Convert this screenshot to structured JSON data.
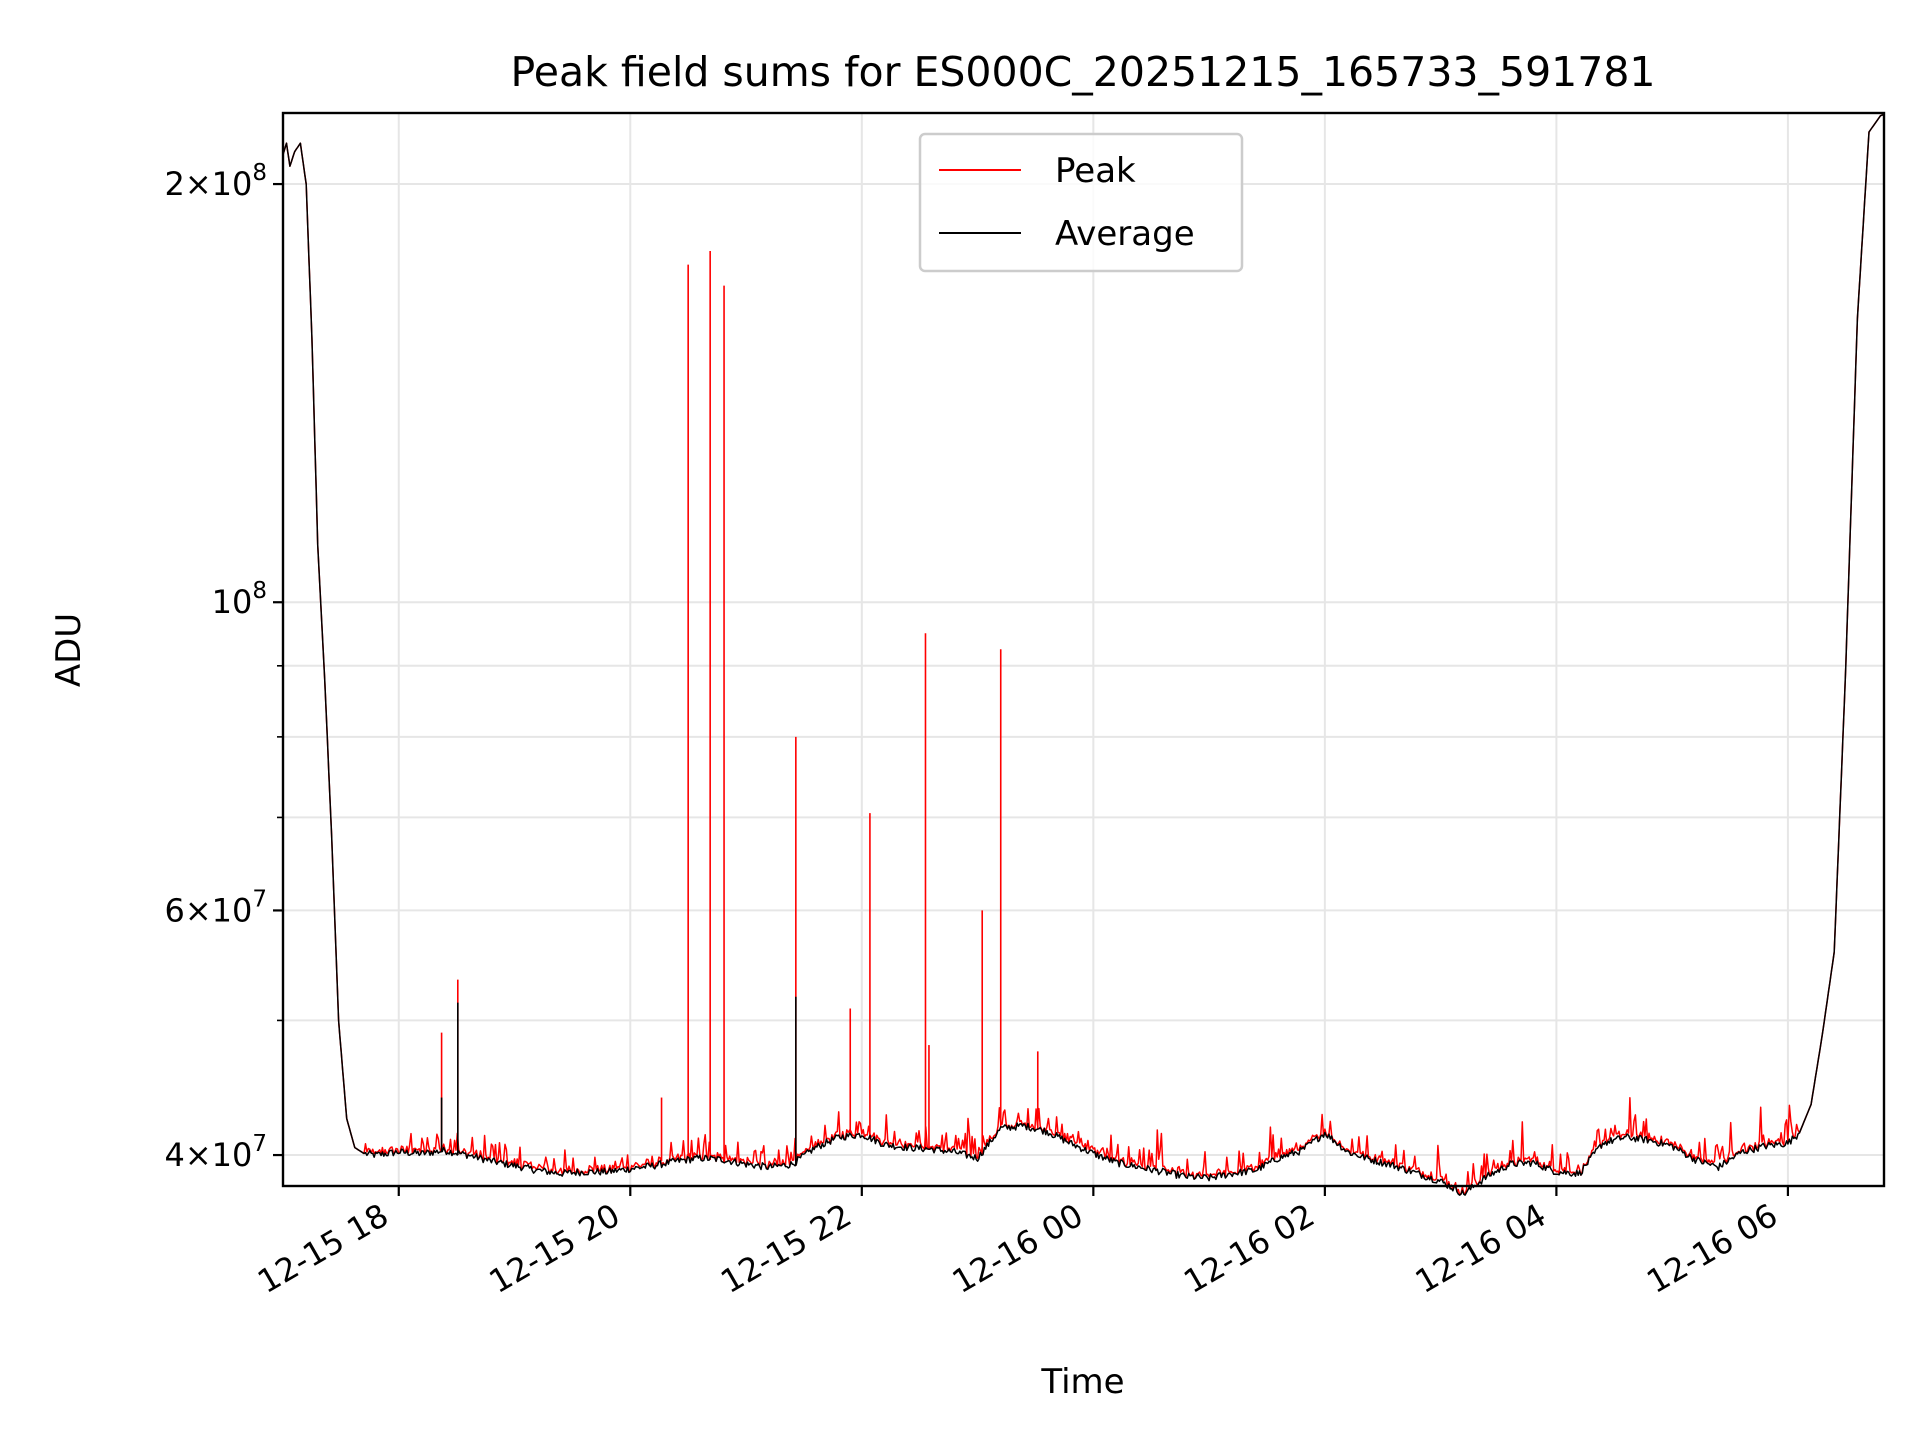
{
  "chart_data": {
    "type": "line",
    "title": "Peak field sums for ES000C_20251215_165733_591781",
    "xlabel": "Time",
    "ylabel": "ADU",
    "yscale": "log",
    "ylim": [
      38000000,
      225000000
    ],
    "xlim_hours_after_2025_12_15_17_00": [
      0.0,
      13.83
    ],
    "grid": true,
    "legend_position": "upper center",
    "legend": [
      {
        "name": "Peak",
        "color": "#ff0000"
      },
      {
        "name": "Average",
        "color": "#000000"
      }
    ],
    "x_ticks": [
      {
        "hours": 1,
        "label": "12-15 18"
      },
      {
        "hours": 3,
        "label": "12-15 20"
      },
      {
        "hours": 5,
        "label": "12-15 22"
      },
      {
        "hours": 7,
        "label": "12-16 00"
      },
      {
        "hours": 9,
        "label": "12-16 02"
      },
      {
        "hours": 11,
        "label": "12-16 04"
      },
      {
        "hours": 13,
        "label": "12-16 06"
      }
    ],
    "y_major_ticks": [
      {
        "value": 40000000,
        "mantissa": "4",
        "exp": "7"
      },
      {
        "value": 60000000,
        "mantissa": "6",
        "exp": "7"
      },
      {
        "value": 100000000,
        "mantissa": "",
        "exp": "8"
      },
      {
        "value": 200000000,
        "mantissa": "2",
        "exp": "8"
      }
    ],
    "y_minor_ticks": [
      50000000,
      70000000,
      80000000,
      90000000
    ],
    "series": [
      {
        "name": "Average",
        "color": "#000000",
        "x": [
          0.0,
          0.03,
          0.06,
          0.1,
          0.15,
          0.2,
          0.25,
          0.3,
          0.36,
          0.42,
          0.48,
          0.55,
          0.62,
          0.7,
          0.8,
          1.0,
          1.2,
          1.4,
          1.6,
          1.8,
          2.0,
          2.2,
          2.4,
          2.6,
          2.8,
          3.0,
          3.2,
          3.4,
          3.6,
          3.8,
          4.0,
          4.2,
          4.4,
          4.6,
          4.8,
          5.0,
          5.2,
          5.4,
          5.6,
          5.8,
          6.0,
          6.2,
          6.4,
          6.6,
          6.8,
          7.0,
          7.2,
          7.4,
          7.6,
          7.8,
          8.0,
          8.2,
          8.4,
          8.6,
          8.8,
          9.0,
          9.2,
          9.4,
          9.6,
          9.8,
          10.0,
          10.2,
          10.4,
          10.6,
          10.8,
          11.0,
          11.2,
          11.4,
          11.6,
          11.8,
          12.0,
          12.2,
          12.4,
          12.6,
          12.8,
          13.0,
          13.1,
          13.2,
          13.3,
          13.4,
          13.5,
          13.6,
          13.7,
          13.8,
          13.83
        ],
        "y": [
          210000000,
          214000000,
          206000000,
          211000000,
          214000000,
          200000000,
          155000000,
          110000000,
          88000000,
          68000000,
          50000000,
          42500000,
          40500000,
          40100000,
          40000000,
          40200000,
          40100000,
          40300000,
          40000000,
          39600000,
          39300000,
          39000000,
          38800000,
          38900000,
          38900000,
          39100000,
          39300000,
          39600000,
          39800000,
          39700000,
          39400000,
          39200000,
          39400000,
          40500000,
          41200000,
          41400000,
          40700000,
          40500000,
          40400000,
          40200000,
          39800000,
          41800000,
          42000000,
          41600000,
          40800000,
          40100000,
          39500000,
          39200000,
          38900000,
          38600000,
          38500000,
          38800000,
          39000000,
          39800000,
          40300000,
          41500000,
          40200000,
          39700000,
          39300000,
          38800000,
          38300000,
          37500000,
          38600000,
          39400000,
          39500000,
          38900000,
          38800000,
          40800000,
          41200000,
          41000000,
          40600000,
          39700000,
          39200000,
          40200000,
          40600000,
          40800000,
          41500000,
          43500000,
          49000000,
          56000000,
          90000000,
          160000000,
          218000000,
          224000000,
          224500000
        ]
      },
      {
        "name": "Peak",
        "color": "#ff0000",
        "spikes": [
          {
            "x": 1.37,
            "y": 49000000
          },
          {
            "x": 1.51,
            "y": 53500000
          },
          {
            "x": 3.27,
            "y": 44000000
          },
          {
            "x": 3.5,
            "y": 175000000
          },
          {
            "x": 3.69,
            "y": 179000000
          },
          {
            "x": 3.81,
            "y": 169000000
          },
          {
            "x": 4.43,
            "y": 80000000
          },
          {
            "x": 4.9,
            "y": 51000000
          },
          {
            "x": 5.07,
            "y": 70500000
          },
          {
            "x": 5.55,
            "y": 95000000
          },
          {
            "x": 5.58,
            "y": 48000000
          },
          {
            "x": 6.04,
            "y": 60000000
          },
          {
            "x": 6.2,
            "y": 92500000
          },
          {
            "x": 6.52,
            "y": 47500000
          }
        ]
      }
    ]
  }
}
